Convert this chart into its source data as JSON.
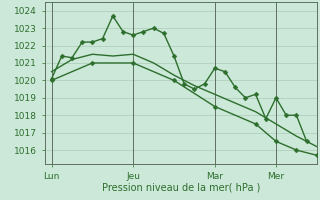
{
  "background_color": "#cce8d8",
  "grid_color": "#aaccb8",
  "line_color": "#2d6e2d",
  "xlabel": "Pression niveau de la mer( hPa )",
  "ylim": [
    1015.2,
    1024.5
  ],
  "yticks": [
    1016,
    1017,
    1018,
    1019,
    1020,
    1021,
    1022,
    1023,
    1024
  ],
  "xtick_labels": [
    "Lun",
    "Jeu",
    "Mar",
    "Mer"
  ],
  "xtick_positions": [
    0,
    24,
    48,
    66
  ],
  "vline_positions": [
    0,
    24,
    48,
    66
  ],
  "xlim": [
    -2,
    78
  ],
  "series_zigzag_x": [
    0,
    3,
    6,
    9,
    12,
    15,
    18,
    21,
    24,
    27,
    30,
    33,
    36,
    39,
    42,
    45,
    48,
    51,
    54,
    57,
    60,
    63,
    66,
    69,
    72,
    75
  ],
  "series_zigzag_y": [
    1020.1,
    1021.4,
    1021.3,
    1022.2,
    1022.2,
    1022.4,
    1023.7,
    1022.8,
    1022.6,
    1022.8,
    1023.0,
    1022.7,
    1021.4,
    1019.8,
    1019.5,
    1019.8,
    1020.7,
    1020.5,
    1019.6,
    1019.0,
    1019.2,
    1017.8,
    1019.0,
    1018.0,
    1018.0,
    1016.5
  ],
  "series_smooth_x": [
    0,
    6,
    12,
    18,
    24,
    30,
    36,
    42,
    48,
    54,
    60,
    66,
    72,
    78
  ],
  "series_smooth_y": [
    1020.5,
    1021.2,
    1021.5,
    1021.4,
    1021.5,
    1021.0,
    1020.3,
    1019.7,
    1019.2,
    1018.7,
    1018.2,
    1017.5,
    1016.8,
    1016.2
  ],
  "series_straight_x": [
    0,
    12,
    24,
    36,
    48,
    60,
    66,
    72,
    78
  ],
  "series_straight_y": [
    1020.0,
    1021.0,
    1021.0,
    1020.0,
    1018.5,
    1017.5,
    1016.5,
    1016.0,
    1015.7
  ],
  "line_width": 1.0,
  "marker_size": 2.5,
  "marker": "D"
}
